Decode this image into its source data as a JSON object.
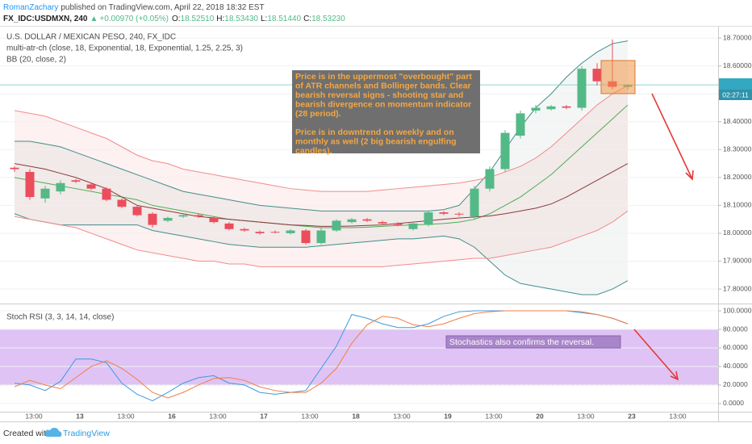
{
  "header": {
    "author": "RomanZachary",
    "published": "published on TradingView.com, April 22, 2018 18:32 EST",
    "symbol": "FX_IDC:USDMXN, 240",
    "arrow": "▲",
    "change": "+0.00970 (+0.05%)",
    "ohlc": [
      {
        "label": "O:",
        "value": "18.52510"
      },
      {
        "label": "H:",
        "value": "18.53430"
      },
      {
        "label": "L:",
        "value": "18.51440"
      },
      {
        "label": "C:",
        "value": "18.53230"
      }
    ]
  },
  "chart_data": [
    {
      "type": "candlestick",
      "legend_lines": [
        "U.S. DOLLAR / MEXICAN PESO, 240, FX_IDC",
        "multi-atr-ch (close, 18, Exponential, 18, Exponential, 1.25, 2.25, 3)",
        "BB (20, close, 2)"
      ],
      "note_lines": [
        "Price is in the uppermost \"overbought\" part",
        "of ATR channels and Bollinger bands. Clear",
        "bearish reversal signs - shooting star and",
        "bearish divergence on momentum indicator",
        "(28 period).",
        "Price is in downtrend on weekly and on",
        "monthly as well (2 big bearish engulfing",
        "candles)."
      ],
      "open": [
        18.235,
        18.22,
        18.125,
        18.15,
        18.19,
        18.175,
        18.16,
        18.12,
        18.095,
        18.07,
        18.045,
        18.06,
        18.065,
        18.055,
        18.035,
        18.015,
        18.005,
        18.005,
        18.0,
        18.01,
        17.965,
        18.01,
        18.04,
        18.05,
        18.04,
        18.035,
        18.015,
        18.03,
        18.075,
        18.07,
        18.06,
        18.16,
        18.23,
        18.35,
        18.44,
        18.445,
        18.455,
        18.45,
        18.59,
        18.545,
        18.5251
      ],
      "high": [
        18.24,
        18.23,
        18.17,
        18.19,
        18.195,
        18.18,
        18.165,
        18.125,
        18.1,
        18.075,
        18.06,
        18.07,
        18.07,
        18.06,
        18.04,
        18.02,
        18.01,
        18.01,
        18.015,
        18.015,
        18.02,
        18.05,
        18.055,
        18.055,
        18.045,
        18.04,
        18.04,
        18.08,
        18.08,
        18.075,
        18.17,
        18.24,
        18.37,
        18.44,
        18.46,
        18.46,
        18.46,
        18.6,
        18.61,
        18.695,
        18.5343
      ],
      "low": [
        18.22,
        18.12,
        18.11,
        18.14,
        18.18,
        18.155,
        18.115,
        18.09,
        18.06,
        18.02,
        18.04,
        18.055,
        18.055,
        18.035,
        18.01,
        18.005,
        17.995,
        18.0,
        17.995,
        17.96,
        17.96,
        18.005,
        18.035,
        18.04,
        18.03,
        18.025,
        18.01,
        18.025,
        18.065,
        18.06,
        18.05,
        18.15,
        18.22,
        18.34,
        18.43,
        18.44,
        18.445,
        18.44,
        18.53,
        18.515,
        18.5144
      ],
      "close": [
        18.23,
        18.13,
        18.16,
        18.18,
        18.185,
        18.16,
        18.12,
        18.095,
        18.065,
        18.03,
        18.055,
        18.065,
        18.06,
        18.04,
        18.015,
        18.01,
        18.0,
        18.004,
        18.01,
        17.965,
        18.01,
        18.045,
        18.05,
        18.045,
        18.035,
        18.03,
        18.035,
        18.075,
        18.07,
        18.068,
        18.16,
        18.23,
        18.36,
        18.43,
        18.45,
        18.455,
        18.45,
        18.59,
        18.545,
        18.525,
        18.5323
      ],
      "up_color": "#53b987",
      "down_color": "#eb4d5c",
      "series": [
        {
          "color": "#3f8f8a",
          "values": [
            18.33,
            18.33,
            18.32,
            18.31,
            18.29,
            18.27,
            18.25,
            18.23,
            18.21,
            18.19,
            18.17,
            18.15,
            18.14,
            18.13,
            18.12,
            18.11,
            18.1,
            18.095,
            18.09,
            18.085,
            18.08,
            18.08,
            18.08,
            18.08,
            18.08,
            18.08,
            18.08,
            18.08,
            18.085,
            18.1,
            18.16,
            18.22,
            18.3,
            18.38,
            18.45,
            18.5,
            18.56,
            18.61,
            18.65,
            18.68,
            18.69
          ]
        },
        {
          "color": "#4caf50",
          "values": [
            18.2,
            18.19,
            18.18,
            18.17,
            18.16,
            18.15,
            18.14,
            18.13,
            18.12,
            18.1,
            18.09,
            18.08,
            18.07,
            18.06,
            18.05,
            18.045,
            18.04,
            18.035,
            18.03,
            18.025,
            18.02,
            18.02,
            18.02,
            18.022,
            18.025,
            18.028,
            18.03,
            18.032,
            18.035,
            18.04,
            18.05,
            18.07,
            18.1,
            18.13,
            18.17,
            18.21,
            18.26,
            18.31,
            18.36,
            18.41,
            18.46
          ]
        },
        {
          "color": "#3f8f8a",
          "values": [
            18.07,
            18.05,
            18.04,
            18.03,
            18.03,
            18.03,
            18.03,
            18.03,
            18.03,
            18.01,
            18.0,
            17.99,
            17.98,
            17.97,
            17.96,
            17.955,
            17.95,
            17.95,
            17.95,
            17.95,
            17.955,
            17.96,
            17.965,
            17.97,
            17.975,
            17.98,
            17.98,
            17.985,
            17.99,
            17.98,
            17.95,
            17.9,
            17.85,
            17.82,
            17.81,
            17.8,
            17.79,
            17.78,
            17.78,
            17.8,
            17.83
          ]
        },
        {
          "color": "#8b3a3a",
          "values": [
            18.25,
            18.24,
            18.23,
            18.215,
            18.2,
            18.18,
            18.16,
            18.13,
            18.1,
            18.09,
            18.08,
            18.07,
            18.06,
            18.055,
            18.05,
            18.045,
            18.04,
            18.035,
            18.03,
            18.028,
            18.025,
            18.025,
            18.026,
            18.028,
            18.03,
            18.035,
            18.04,
            18.045,
            18.05,
            18.055,
            18.058,
            18.062,
            18.07,
            18.08,
            18.09,
            18.105,
            18.13,
            18.16,
            18.19,
            18.22,
            18.25
          ]
        },
        {
          "color": "#f28b8b",
          "values": [
            18.44,
            18.43,
            18.42,
            18.4,
            18.38,
            18.36,
            18.34,
            18.31,
            18.28,
            18.26,
            18.25,
            18.23,
            18.22,
            18.21,
            18.2,
            18.19,
            18.18,
            18.17,
            18.16,
            18.155,
            18.15,
            18.15,
            18.15,
            18.15,
            18.155,
            18.16,
            18.165,
            18.17,
            18.175,
            18.18,
            18.19,
            18.2,
            18.22,
            18.24,
            18.27,
            18.31,
            18.36,
            18.41,
            18.46,
            18.5,
            18.53
          ]
        },
        {
          "color": "#f28b8b",
          "values": [
            18.06,
            18.05,
            18.04,
            18.03,
            18.02,
            18.0,
            17.98,
            17.96,
            17.94,
            17.93,
            17.92,
            17.91,
            17.9,
            17.9,
            17.89,
            17.89,
            17.88,
            17.88,
            17.88,
            17.88,
            17.88,
            17.88,
            17.88,
            17.88,
            17.88,
            17.885,
            17.89,
            17.895,
            17.9,
            17.905,
            17.91,
            17.91,
            17.92,
            17.93,
            17.94,
            17.95,
            17.97,
            17.99,
            18.01,
            18.04,
            18.08
          ]
        }
      ],
      "ylim": [
        17.748,
        18.741
      ],
      "yticks": [
        {
          "value": 18.7,
          "label": "18.70000"
        },
        {
          "value": 18.6,
          "label": "18.60000"
        },
        {
          "value": 18.5,
          "label": "18.50000"
        },
        {
          "value": 18.4,
          "label": "18.40000"
        },
        {
          "value": 18.3,
          "label": "18.30000"
        },
        {
          "value": 18.2,
          "label": "18.20000"
        },
        {
          "value": 18.1,
          "label": "18.10000"
        },
        {
          "value": 18.0,
          "label": "18.00000"
        },
        {
          "value": 17.9,
          "label": "17.90000"
        },
        {
          "value": 17.8,
          "label": "17.80000"
        }
      ],
      "last_price": {
        "value": 18.5323,
        "label": "18.53230"
      },
      "countdown": "02:27:11",
      "grid": true
    },
    {
      "type": "line",
      "title": "Stoch RSI (3, 3, 14, 14, close)",
      "note": "Stochastics also confirms the reversal.",
      "series": [
        {
          "color": "#3c9ae0",
          "values": [
            22,
            20,
            14,
            24,
            48,
            48,
            44,
            22,
            10,
            3,
            12,
            22,
            28,
            30,
            22,
            20,
            12,
            10,
            12,
            14,
            38,
            62,
            96,
            92,
            86,
            82,
            82,
            86,
            94,
            99,
            100,
            100,
            100,
            100,
            100,
            100,
            100,
            98,
            96,
            92,
            86
          ]
        },
        {
          "color": "#f27d40",
          "values": [
            18,
            25,
            20,
            16,
            28,
            40,
            46,
            38,
            26,
            12,
            6,
            12,
            20,
            27,
            28,
            25,
            18,
            14,
            12,
            12,
            22,
            38,
            65,
            85,
            94,
            92,
            85,
            83,
            86,
            92,
            97,
            99,
            100,
            100,
            100,
            100,
            100,
            99,
            96,
            92,
            86
          ]
        }
      ],
      "bands": [
        20,
        80
      ],
      "band_color": "#dfc3f5",
      "ylim": [
        -8.8,
        107
      ],
      "yticks": [
        {
          "value": 100,
          "label": "100.0000"
        },
        {
          "value": 80,
          "label": "80.0000"
        },
        {
          "value": 60,
          "label": "60.0000"
        },
        {
          "value": 40,
          "label": "40.0000"
        },
        {
          "value": 20,
          "label": "20.0000"
        },
        {
          "value": 0,
          "label": "0.0000"
        }
      ],
      "x_labels": [
        "13:00",
        "13",
        "13:00",
        "16",
        "13:00",
        "17",
        "13:00",
        "18",
        "13:00",
        "19",
        "13:00",
        "20",
        "13:00",
        "23",
        "13:00"
      ],
      "grid": true
    }
  ],
  "footer": {
    "created": "Created with",
    "brand": "TradingView"
  }
}
